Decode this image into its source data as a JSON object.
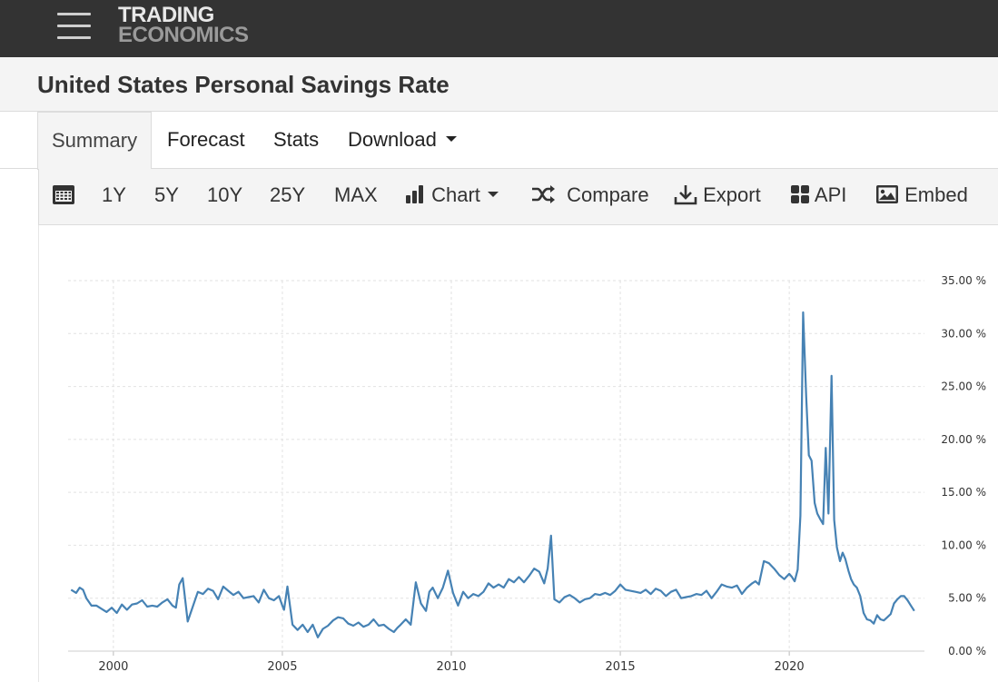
{
  "header": {
    "logo_line1": "TRADING",
    "logo_line2": "ECONOMICS"
  },
  "page_title": "United States Personal Savings Rate",
  "tabs": [
    {
      "label": "Summary",
      "active": true
    },
    {
      "label": "Forecast"
    },
    {
      "label": "Stats"
    },
    {
      "label": "Download"
    }
  ],
  "toolbar": {
    "ranges": [
      "1Y",
      "5Y",
      "10Y",
      "25Y",
      "MAX"
    ],
    "chart_label": "Chart",
    "compare_label": "Compare",
    "export_label": "Export",
    "api_label": "API",
    "embed_label": "Embed"
  },
  "colors": {
    "line": "#4682b4",
    "topbar": "#333333",
    "panel": "#f4f4f4"
  },
  "chart_data": {
    "type": "line",
    "title": "",
    "xlabel": "",
    "ylabel": "",
    "ylim": [
      0,
      35
    ],
    "xlim": [
      1998.66,
      2024.0
    ],
    "y_ticks": [
      "35.00 %",
      "30.00 %",
      "25.00 %",
      "20.00 %",
      "15.00 %",
      "10.00 %",
      "5.00 %",
      "0.00 %"
    ],
    "x_ticks": [
      "2000",
      "2005",
      "2010",
      "2015",
      "2020"
    ],
    "grid": true,
    "series": [
      {
        "x": [
          1998.75,
          1998.9,
          1999.0,
          1999.1,
          1999.2,
          1999.35,
          1999.5,
          1999.65,
          1999.8,
          1999.95,
          2000.1,
          2000.25,
          2000.4,
          2000.55,
          2000.7,
          2000.85,
          2001.0,
          2001.15,
          2001.3,
          2001.45,
          2001.6,
          2001.75,
          2001.85,
          2001.95,
          2002.05,
          2002.2,
          2002.35,
          2002.5,
          2002.65,
          2002.8,
          2002.95,
          2003.1,
          2003.25,
          2003.4,
          2003.55,
          2003.7,
          2003.85,
          2004.0,
          2004.15,
          2004.3,
          2004.45,
          2004.6,
          2004.75,
          2004.9,
          2005.0,
          2005.05,
          2005.15,
          2005.3,
          2005.45,
          2005.6,
          2005.75,
          2005.9,
          2006.05,
          2006.2,
          2006.35,
          2006.5,
          2006.65,
          2006.8,
          2006.95,
          2007.1,
          2007.25,
          2007.4,
          2007.55,
          2007.7,
          2007.85,
          2008.0,
          2008.15,
          2008.3,
          2008.4,
          2008.5,
          2008.65,
          2008.8,
          2008.95,
          2009.1,
          2009.25,
          2009.35,
          2009.45,
          2009.6,
          2009.75,
          2009.9,
          2010.05,
          2010.2,
          2010.35,
          2010.5,
          2010.65,
          2010.8,
          2010.95,
          2011.1,
          2011.25,
          2011.4,
          2011.55,
          2011.7,
          2011.85,
          2012.0,
          2012.15,
          2012.3,
          2012.45,
          2012.6,
          2012.75,
          2012.85,
          2012.95,
          2013.05,
          2013.2,
          2013.35,
          2013.5,
          2013.65,
          2013.8,
          2013.95,
          2014.1,
          2014.25,
          2014.4,
          2014.55,
          2014.7,
          2014.85,
          2015.0,
          2015.15,
          2015.3,
          2015.45,
          2015.6,
          2015.75,
          2015.9,
          2016.05,
          2016.2,
          2016.35,
          2016.5,
          2016.65,
          2016.8,
          2016.95,
          2017.1,
          2017.25,
          2017.4,
          2017.55,
          2017.7,
          2017.85,
          2018.0,
          2018.15,
          2018.3,
          2018.45,
          2018.6,
          2018.75,
          2018.9,
          2019.0,
          2019.1,
          2019.25,
          2019.4,
          2019.55,
          2019.7,
          2019.85,
          2020.0,
          2020.08,
          2020.16,
          2020.25,
          2020.33,
          2020.41,
          2020.5,
          2020.58,
          2020.66,
          2020.75,
          2020.83,
          2020.91,
          2021.0,
          2021.08,
          2021.16,
          2021.25,
          2021.33,
          2021.41,
          2021.5,
          2021.58,
          2021.66,
          2021.75,
          2021.83,
          2021.91,
          2022.0,
          2022.1,
          2022.2,
          2022.3,
          2022.4,
          2022.5,
          2022.6,
          2022.7,
          2022.8,
          2022.9,
          2023.0,
          2023.1,
          2023.2,
          2023.3,
          2023.4,
          2023.5,
          2023.6,
          2023.7
        ],
        "y": [
          5.8,
          5.5,
          6.0,
          5.8,
          5.0,
          4.3,
          4.3,
          4.0,
          3.7,
          4.1,
          3.6,
          4.4,
          3.9,
          4.4,
          4.5,
          4.8,
          4.2,
          4.3,
          4.2,
          4.6,
          4.9,
          4.3,
          4.1,
          6.3,
          6.9,
          2.8,
          4.2,
          5.6,
          5.4,
          5.9,
          5.7,
          4.9,
          6.1,
          5.7,
          5.3,
          5.6,
          5.0,
          5.1,
          5.2,
          4.6,
          5.8,
          5.0,
          4.8,
          5.2,
          4.3,
          3.9,
          6.1,
          2.5,
          2.0,
          2.5,
          1.8,
          2.5,
          1.3,
          2.1,
          2.4,
          2.9,
          3.2,
          3.1,
          2.6,
          2.4,
          2.7,
          2.3,
          2.5,
          3.0,
          2.4,
          2.5,
          2.1,
          1.8,
          2.2,
          2.5,
          3.0,
          2.5,
          6.5,
          4.5,
          3.8,
          5.6,
          6.0,
          5.0,
          6.0,
          7.6,
          5.5,
          4.3,
          5.6,
          5.0,
          5.4,
          5.2,
          5.6,
          6.4,
          6.0,
          6.3,
          6.0,
          6.8,
          6.5,
          7.0,
          6.5,
          7.1,
          7.8,
          7.5,
          6.4,
          7.8,
          10.9,
          4.9,
          4.6,
          5.1,
          5.3,
          5.0,
          4.6,
          4.9,
          5.0,
          5.4,
          5.3,
          5.5,
          5.3,
          5.7,
          6.3,
          5.8,
          5.7,
          5.6,
          5.5,
          5.8,
          5.4,
          5.9,
          5.7,
          5.2,
          5.6,
          5.8,
          5.0,
          5.1,
          5.2,
          5.4,
          5.3,
          5.7,
          5.0,
          5.6,
          6.3,
          6.1,
          6.0,
          6.2,
          5.4,
          6.0,
          6.4,
          6.6,
          6.3,
          8.5,
          8.3,
          7.8,
          7.2,
          6.8,
          7.3,
          7.0,
          6.6,
          7.7,
          12.8,
          32.0,
          24.0,
          18.5,
          18.0,
          14.0,
          13.0,
          12.5,
          12.0,
          19.2,
          13.0,
          26.0,
          12.4,
          9.8,
          8.5,
          9.3,
          8.7,
          7.6,
          6.8,
          6.3,
          6.0,
          5.2,
          3.6,
          3.0,
          2.9,
          2.6,
          3.4,
          3.0,
          2.9,
          3.2,
          3.5,
          4.5,
          4.9,
          5.2,
          5.2,
          4.8,
          4.3,
          3.8
        ]
      }
    ]
  }
}
